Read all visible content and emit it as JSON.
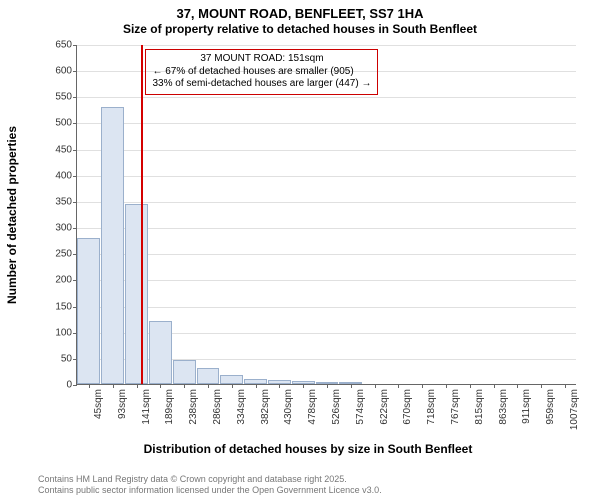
{
  "title": {
    "main": "37, MOUNT ROAD, BENFLEET, SS7 1HA",
    "sub": "Size of property relative to detached houses in South Benfleet"
  },
  "chart": {
    "type": "histogram",
    "ylim": [
      0,
      650
    ],
    "ytick_step": 50,
    "xlabel": "Distribution of detached houses by size in South Benfleet",
    "ylabel": "Number of detached properties",
    "bar_fill": "#dce5f2",
    "bar_stroke": "#9bb0cc",
    "grid_color": "#e0e0e0",
    "background_color": "#ffffff",
    "marker_color": "#d40000",
    "annot_border": "#cc0000",
    "xticks": [
      "45sqm",
      "93sqm",
      "141sqm",
      "189sqm",
      "238sqm",
      "286sqm",
      "334sqm",
      "382sqm",
      "430sqm",
      "478sqm",
      "526sqm",
      "574sqm",
      "622sqm",
      "670sqm",
      "718sqm",
      "767sqm",
      "815sqm",
      "863sqm",
      "911sqm",
      "959sqm",
      "1007sqm"
    ],
    "bars": [
      280,
      530,
      345,
      120,
      45,
      30,
      18,
      10,
      7,
      5,
      4,
      3,
      0,
      0,
      0,
      0,
      0,
      0,
      0,
      0,
      0
    ],
    "marker_value": 151,
    "x_start": 45,
    "x_step": 48,
    "annot": {
      "line1": "37 MOUNT ROAD: 151sqm",
      "line2": "← 67% of detached houses are smaller (905)",
      "line3": "33% of semi-detached houses are larger (447) →"
    }
  },
  "footer": {
    "line1": "Contains HM Land Registry data © Crown copyright and database right 2025.",
    "line2": "Contains public sector information licensed under the Open Government Licence v3.0."
  }
}
